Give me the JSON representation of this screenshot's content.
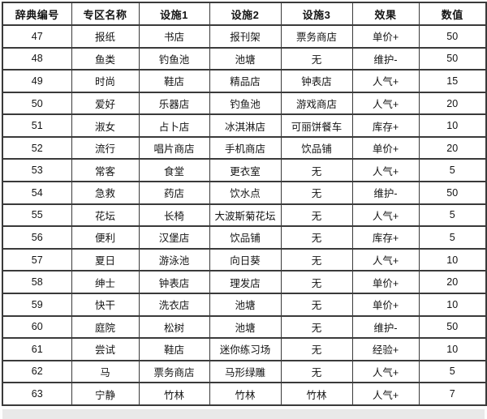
{
  "colors": {
    "table_border": "#3a3a3a",
    "cell_background": "#ffffff",
    "text": "#141414",
    "partial_next_row_background": "#e9e9e9"
  },
  "table": {
    "headers": [
      "辞典编号",
      "专区名称",
      "设施1",
      "设施2",
      "设施3",
      "效果",
      "数值"
    ],
    "rows": [
      [
        "47",
        "报纸",
        "书店",
        "报刊架",
        "票务商店",
        "单价+",
        "50"
      ],
      [
        "48",
        "鱼类",
        "钓鱼池",
        "池塘",
        "无",
        "维护-",
        "50"
      ],
      [
        "49",
        "时尚",
        "鞋店",
        "精品店",
        "钟表店",
        "人气+",
        "15"
      ],
      [
        "50",
        "爱好",
        "乐器店",
        "钓鱼池",
        "游戏商店",
        "人气+",
        "20"
      ],
      [
        "51",
        "淑女",
        "占卜店",
        "冰淇淋店",
        "可丽饼餐车",
        "库存+",
        "10"
      ],
      [
        "52",
        "流行",
        "唱片商店",
        "手机商店",
        "饮品铺",
        "单价+",
        "20"
      ],
      [
        "53",
        "常客",
        "食堂",
        "更衣室",
        "无",
        "人气+",
        "5"
      ],
      [
        "54",
        "急救",
        "药店",
        "饮水点",
        "无",
        "维护-",
        "50"
      ],
      [
        "55",
        "花坛",
        "长椅",
        "大波斯菊花坛",
        "无",
        "人气+",
        "5"
      ],
      [
        "56",
        "便利",
        "汉堡店",
        "饮品铺",
        "无",
        "库存+",
        "5"
      ],
      [
        "57",
        "夏日",
        "游泳池",
        "向日葵",
        "无",
        "人气+",
        "10"
      ],
      [
        "58",
        "绅士",
        "钟表店",
        "理发店",
        "无",
        "单价+",
        "20"
      ],
      [
        "59",
        "快干",
        "洗衣店",
        "池塘",
        "无",
        "单价+",
        "10"
      ],
      [
        "60",
        "庭院",
        "松树",
        "池塘",
        "无",
        "维护-",
        "50"
      ],
      [
        "61",
        "尝试",
        "鞋店",
        "迷你练习场",
        "无",
        "经验+",
        "10"
      ],
      [
        "62",
        "马",
        "票务商店",
        "马形绿雕",
        "无",
        "人气+",
        "5"
      ],
      [
        "63",
        "宁静",
        "竹林",
        "竹林",
        "竹林",
        "人气+",
        "7"
      ]
    ]
  }
}
